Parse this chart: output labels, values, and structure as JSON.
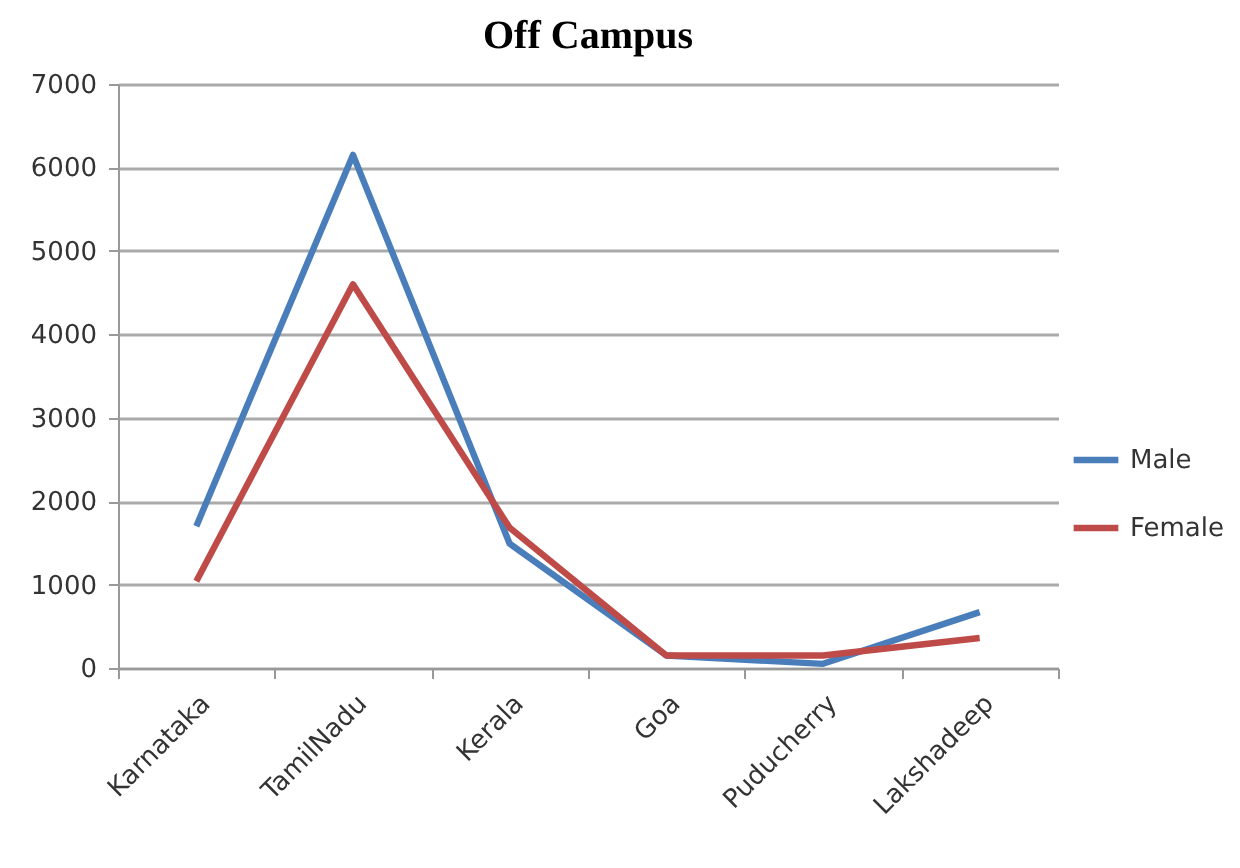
{
  "chart_data": {
    "type": "line",
    "title": "Off Campus",
    "categories": [
      "Karnataka",
      "TamilNadu",
      "Kerala",
      "Goa",
      "Puducherry",
      "Lakshadeep"
    ],
    "series": [
      {
        "name": "Male",
        "color": "#4a7ebb",
        "values": [
          1700,
          6150,
          1490,
          150,
          50,
          670
        ]
      },
      {
        "name": "Female",
        "color": "#be4b48",
        "values": [
          1040,
          4600,
          1680,
          150,
          150,
          360
        ]
      }
    ],
    "ylim": [
      0,
      7000
    ],
    "yticks": [
      0,
      1000,
      2000,
      3000,
      4000,
      5000,
      6000,
      7000
    ],
    "grid": "y",
    "legend": "right"
  }
}
